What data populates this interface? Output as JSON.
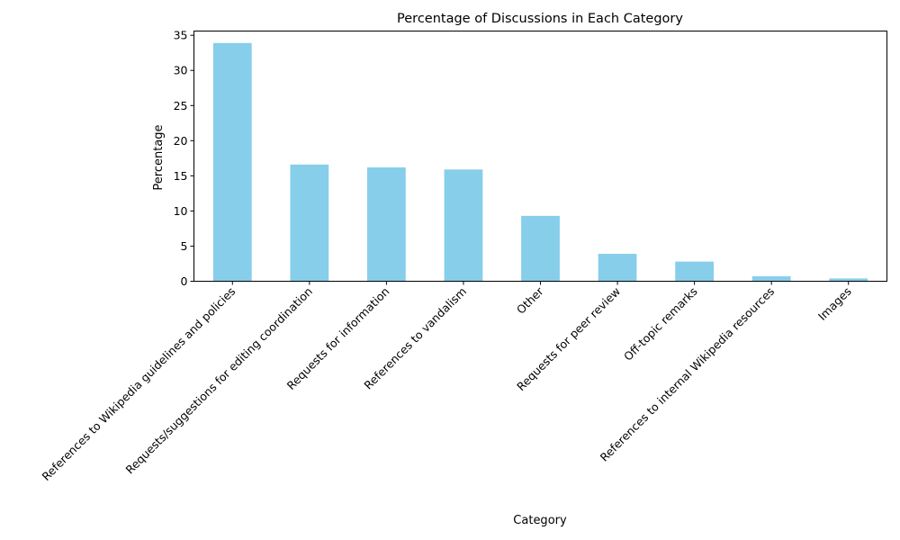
{
  "chart_data": {
    "type": "bar",
    "title": "Percentage of Discussions in Each Category",
    "xlabel": "Category",
    "ylabel": "Percentage",
    "categories": [
      "References to Wikipedia guidelines and policies",
      "Requests/suggestions for editing coordination",
      "Requests for information",
      "References to vandalism",
      "Other",
      "Requests for peer review",
      "Off-topic remarks",
      "References to internal Wikipedia resources",
      "Images"
    ],
    "values": [
      33.9,
      16.6,
      16.2,
      15.9,
      9.3,
      3.9,
      2.8,
      0.7,
      0.4
    ],
    "ylim": [
      0,
      35.6
    ],
    "yticks": [
      0,
      5,
      10,
      15,
      20,
      25,
      30,
      35
    ],
    "bar_color": "#87CEEB",
    "grid": false,
    "legend": "none"
  }
}
